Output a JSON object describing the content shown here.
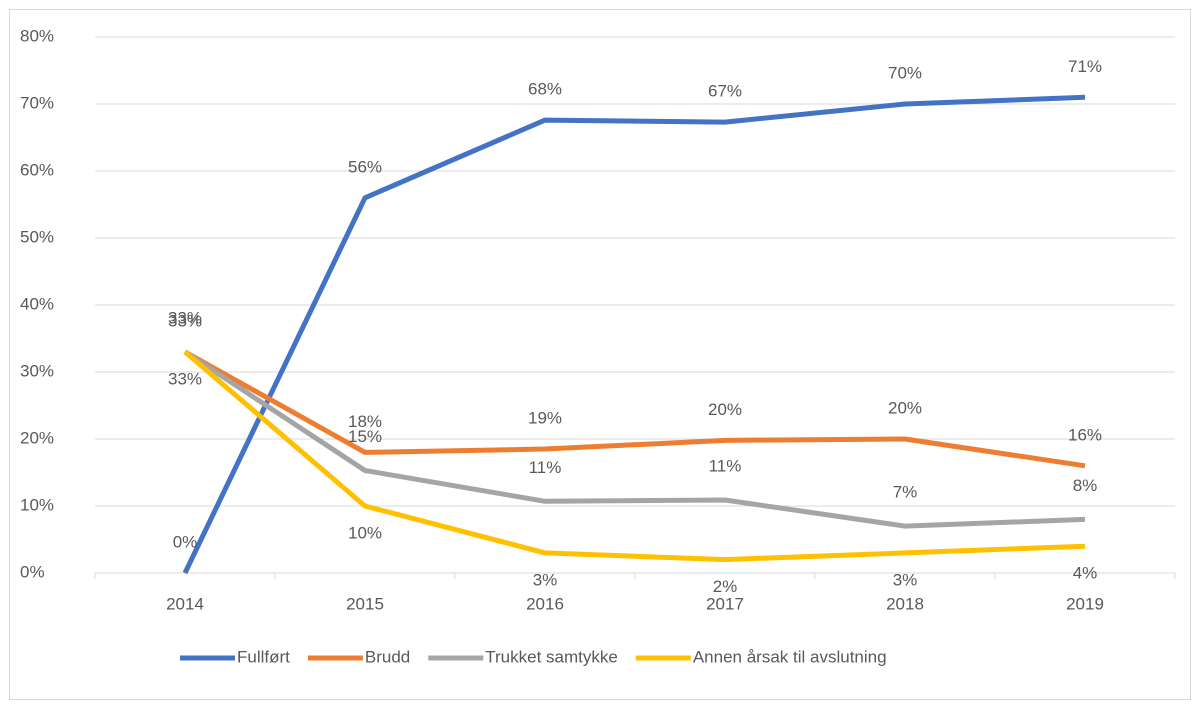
{
  "chart_data": {
    "type": "line",
    "categories": [
      "2014",
      "2015",
      "2016",
      "2017",
      "2018",
      "2019"
    ],
    "series": [
      {
        "name": "Fullført",
        "color": "#4472c4",
        "values": [
          0,
          56,
          67.6,
          67.3,
          70,
          71
        ],
        "value_labels": [
          "0%",
          "56%",
          "68%",
          "67%",
          "70%",
          "71%"
        ]
      },
      {
        "name": "Brudd",
        "color": "#ed7d31",
        "values": [
          33,
          18,
          18.5,
          19.8,
          20,
          16
        ],
        "value_labels": [
          "33%",
          "18%",
          "19%",
          "20%",
          "20%",
          "16%"
        ]
      },
      {
        "name": "Trukket samtykke",
        "color": "#a5a5a5",
        "values": [
          33,
          15.3,
          10.7,
          10.9,
          7,
          8
        ],
        "value_labels": [
          "33%",
          "15%",
          "11%",
          "11%",
          "7%",
          "8%"
        ]
      },
      {
        "name": "Annen årsak til avslutning",
        "color": "#ffc000",
        "values": [
          33,
          10,
          3,
          2,
          3,
          4
        ],
        "value_labels": [
          "33%",
          "10%",
          "3%",
          "2%",
          "3%",
          "4%"
        ]
      }
    ],
    "ylim": [
      0,
      80
    ],
    "yticks": [
      {
        "value": 0,
        "label": "0%"
      },
      {
        "value": 10,
        "label": "10%"
      },
      {
        "value": 20,
        "label": "20%"
      },
      {
        "value": 30,
        "label": "30%"
      },
      {
        "value": 40,
        "label": "40%"
      },
      {
        "value": 50,
        "label": "50%"
      },
      {
        "value": 60,
        "label": "60%"
      },
      {
        "value": 70,
        "label": "70%"
      },
      {
        "value": 80,
        "label": "80%"
      }
    ],
    "grid": true,
    "legend": "bottom"
  }
}
